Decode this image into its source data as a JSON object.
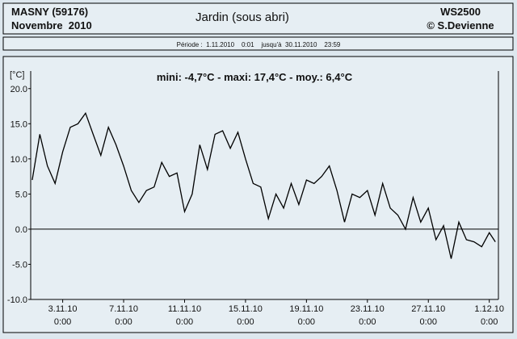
{
  "header": {
    "station": "MASNY (59176)",
    "month": "Novembre  2010",
    "title": "Jardin (sous abri)",
    "device": "WS2500",
    "author": "© S.Devienne",
    "period": "Période :  1.11.2010    0:01    jusqu'à  30.11.2010    23:59"
  },
  "chart_data": {
    "type": "line",
    "title": "mini: -4,7°C - maxi: 17,4°C - moy.: 6,4°C",
    "y_label": "[°C]",
    "color": "#000000",
    "zero_line": true,
    "x": [
      0,
      0.5,
      1,
      1.5,
      2,
      2.5,
      3,
      3.5,
      4,
      4.5,
      5,
      5.5,
      6,
      6.5,
      7,
      7.5,
      8,
      8.5,
      9,
      9.5,
      10,
      10.5,
      11,
      11.5,
      12,
      12.5,
      13,
      13.5,
      14,
      14.5,
      15,
      15.5,
      16,
      16.5,
      17,
      17.5,
      18,
      18.5,
      19,
      19.5,
      20,
      20.5,
      21,
      21.5,
      22,
      22.5,
      23,
      23.5,
      24,
      24.5,
      25,
      25.5,
      26,
      26.5,
      27,
      27.5,
      28,
      28.5,
      29,
      29.5,
      30,
      30.4
    ],
    "values": [
      7,
      13.5,
      9,
      6.5,
      11,
      14.5,
      15,
      16.5,
      13.5,
      10.5,
      14.5,
      12,
      9,
      5.5,
      3.8,
      5.5,
      6,
      9.5,
      7.5,
      8,
      2.5,
      5,
      12,
      8.5,
      13.5,
      14,
      11.5,
      13.8,
      10,
      6.5,
      6,
      1.5,
      5,
      3,
      6.5,
      3.5,
      7,
      6.5,
      7.5,
      9,
      5.5,
      1,
      5,
      4.5,
      5.5,
      2,
      6.5,
      3,
      2,
      0,
      4.5,
      1,
      3,
      -1.5,
      0.5,
      -4.2,
      1,
      -1.5,
      -1.8,
      -2.5,
      -0.5,
      -1.8
    ],
    "xlim": [
      -0.1,
      30.6
    ],
    "ylim": [
      -10,
      22.5
    ],
    "xticks": [
      {
        "value": 2,
        "label": "3.11.10 0:00"
      },
      {
        "value": 6,
        "label": "7.11.10 0:00"
      },
      {
        "value": 10,
        "label": "11.11.10 0:00"
      },
      {
        "value": 14,
        "label": "15.11.10 0:00"
      },
      {
        "value": 18,
        "label": "19.11.10 0:00"
      },
      {
        "value": 22,
        "label": "23.11.10 0:00"
      },
      {
        "value": 26,
        "label": "27.11.10 0:00"
      },
      {
        "value": 30,
        "label": "1.12.10 0:00"
      }
    ],
    "yticks": [
      {
        "value": -10,
        "label": "-10.0"
      },
      {
        "value": -5,
        "label": "-5.0"
      },
      {
        "value": 0,
        "label": "0.0"
      },
      {
        "value": 5,
        "label": "5.0"
      },
      {
        "value": 10,
        "label": "10.0"
      },
      {
        "value": 15,
        "label": "15.0"
      },
      {
        "value": 20,
        "label": "20.0"
      }
    ]
  }
}
